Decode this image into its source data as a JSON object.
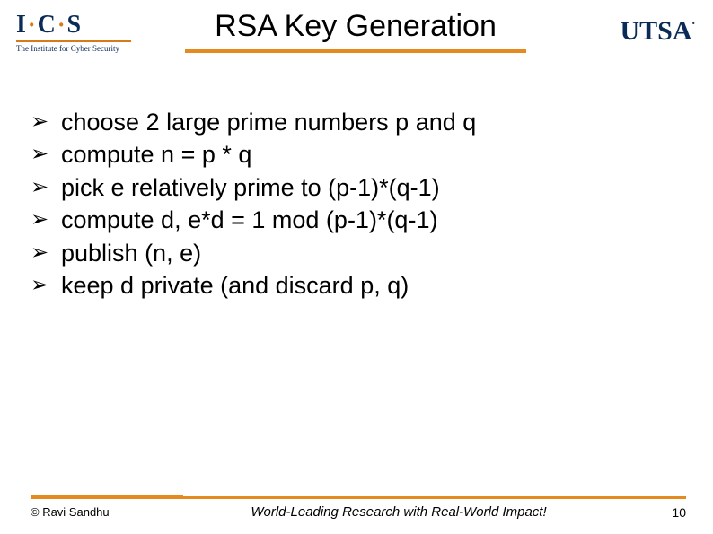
{
  "header": {
    "logo_left": {
      "letters": "I·C·S",
      "subtitle": "The Institute for Cyber Security"
    },
    "title": "RSA Key Generation",
    "logo_right": "UTSA"
  },
  "bullets": [
    "choose 2 large prime numbers p and q",
    "compute n = p * q",
    "pick e relatively prime to (p-1)*(q-1)",
    "compute d, e*d = 1 mod (p-1)*(q-1)",
    "publish (n, e)",
    "keep d private (and discard p, q)"
  ],
  "footer": {
    "copyright": "© Ravi  Sandhu",
    "tagline": "World-Leading Research with Real-World Impact!",
    "page": "10"
  },
  "colors": {
    "accent": "#e58a1f",
    "navy": "#0b2b57",
    "bg": "#ffffff",
    "text": "#000000"
  },
  "typography": {
    "title_fontsize": 34,
    "body_fontsize": 27,
    "footer_fontsize": 13
  }
}
